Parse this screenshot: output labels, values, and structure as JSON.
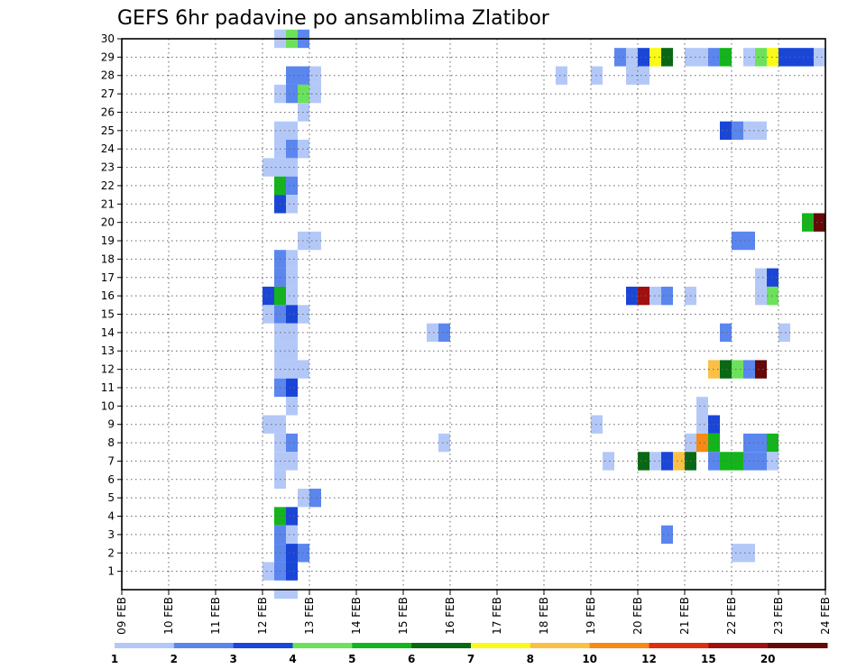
{
  "chart_data": {
    "type": "heatmap",
    "title": "GEFS 6hr padavine po ansamblima Zlatibor",
    "x_ticks": [
      "09 FEB",
      "10 FEB",
      "11 FEB",
      "12 FEB",
      "13 FEB",
      "14 FEB",
      "15 FEB",
      "16 FEB",
      "17 FEB",
      "18 FEB",
      "19 FEB",
      "20 FEB",
      "21 FEB",
      "22 FEB",
      "23 FEB",
      "24 FEB"
    ],
    "y_ticks": [
      "1",
      "2",
      "3",
      "4",
      "5",
      "6",
      "7",
      "8",
      "9",
      "10",
      "11",
      "12",
      "13",
      "14",
      "15",
      "16",
      "17",
      "18",
      "19",
      "20",
      "21",
      "22",
      "23",
      "24",
      "25",
      "26",
      "27",
      "28",
      "29",
      "30"
    ],
    "xlim_days": [
      9,
      24
    ],
    "ylim_members": [
      0,
      30
    ],
    "step_hours": 6,
    "grid": true,
    "legend": "colorbar-bottom",
    "colorbar": {
      "labels": [
        "1",
        "2",
        "3",
        "4",
        "5",
        "6",
        "7",
        "8",
        "10",
        "12",
        "15",
        "20"
      ],
      "colors": [
        "#b4c8f8",
        "#5a86ee",
        "#1a46d8",
        "#6ce25a",
        "#14b41c",
        "#0a6814",
        "#fafa18",
        "#fac046",
        "#f68a14",
        "#dc2e10",
        "#a01010",
        "#640808"
      ]
    },
    "cells": [
      {
        "member": 30,
        "day": 12.25,
        "value": 1.5
      },
      {
        "member": 30,
        "day": 12.5,
        "value": 4.5
      },
      {
        "member": 30,
        "day": 12.75,
        "value": 2.5
      },
      {
        "member": 29,
        "day": 19.5,
        "value": 2.5
      },
      {
        "member": 29,
        "day": 19.75,
        "value": 1.5
      },
      {
        "member": 29,
        "day": 20.0,
        "value": 3.5
      },
      {
        "member": 29,
        "day": 20.25,
        "value": 7.5
      },
      {
        "member": 29,
        "day": 20.5,
        "value": 6.5
      },
      {
        "member": 29,
        "day": 21.0,
        "value": 1.5
      },
      {
        "member": 29,
        "day": 21.25,
        "value": 1.5
      },
      {
        "member": 29,
        "day": 21.5,
        "value": 2.5
      },
      {
        "member": 29,
        "day": 21.75,
        "value": 5.5
      },
      {
        "member": 29,
        "day": 22.25,
        "value": 1.5
      },
      {
        "member": 29,
        "day": 22.5,
        "value": 4.5
      },
      {
        "member": 29,
        "day": 22.75,
        "value": 7.5
      },
      {
        "member": 29,
        "day": 23.0,
        "value": 3.5
      },
      {
        "member": 29,
        "day": 23.25,
        "value": 3.5
      },
      {
        "member": 29,
        "day": 23.5,
        "value": 3.5
      },
      {
        "member": 29,
        "day": 23.75,
        "value": 1.5
      },
      {
        "member": 28,
        "day": 12.5,
        "value": 2.5
      },
      {
        "member": 28,
        "day": 12.75,
        "value": 2.5
      },
      {
        "member": 28,
        "day": 13.0,
        "value": 1.5
      },
      {
        "member": 28,
        "day": 18.25,
        "value": 1.5
      },
      {
        "member": 28,
        "day": 19.0,
        "value": 1.5
      },
      {
        "member": 28,
        "day": 19.75,
        "value": 1.5
      },
      {
        "member": 28,
        "day": 20.0,
        "value": 1.5
      },
      {
        "member": 27,
        "day": 12.25,
        "value": 1.5
      },
      {
        "member": 27,
        "day": 12.5,
        "value": 2.5
      },
      {
        "member": 27,
        "day": 12.75,
        "value": 4.5
      },
      {
        "member": 27,
        "day": 13.0,
        "value": 1.5
      },
      {
        "member": 26,
        "day": 12.75,
        "value": 1.5
      },
      {
        "member": 25,
        "day": 12.25,
        "value": 1.5
      },
      {
        "member": 25,
        "day": 12.5,
        "value": 1.5
      },
      {
        "member": 25,
        "day": 21.75,
        "value": 3.5
      },
      {
        "member": 25,
        "day": 22.0,
        "value": 2.5
      },
      {
        "member": 25,
        "day": 22.25,
        "value": 1.5
      },
      {
        "member": 25,
        "day": 22.5,
        "value": 1.5
      },
      {
        "member": 24,
        "day": 12.25,
        "value": 1.5
      },
      {
        "member": 24,
        "day": 12.5,
        "value": 2.5
      },
      {
        "member": 24,
        "day": 12.75,
        "value": 1.5
      },
      {
        "member": 23,
        "day": 12.0,
        "value": 1.5
      },
      {
        "member": 23,
        "day": 12.25,
        "value": 1.5
      },
      {
        "member": 23,
        "day": 12.5,
        "value": 1.5
      },
      {
        "member": 22,
        "day": 12.25,
        "value": 5.5
      },
      {
        "member": 22,
        "day": 12.5,
        "value": 2.5
      },
      {
        "member": 21,
        "day": 12.25,
        "value": 3.5
      },
      {
        "member": 21,
        "day": 12.5,
        "value": 1.5
      },
      {
        "member": 20,
        "day": 23.5,
        "value": 5.5
      },
      {
        "member": 20,
        "day": 23.75,
        "value": 20.5
      },
      {
        "member": 19,
        "day": 12.75,
        "value": 1.5
      },
      {
        "member": 19,
        "day": 13.0,
        "value": 1.5
      },
      {
        "member": 19,
        "day": 22.0,
        "value": 2.5
      },
      {
        "member": 19,
        "day": 22.25,
        "value": 2.5
      },
      {
        "member": 18,
        "day": 12.25,
        "value": 2.5
      },
      {
        "member": 18,
        "day": 12.5,
        "value": 1.5
      },
      {
        "member": 17,
        "day": 12.25,
        "value": 2.5
      },
      {
        "member": 17,
        "day": 12.5,
        "value": 1.5
      },
      {
        "member": 17,
        "day": 22.5,
        "value": 1.5
      },
      {
        "member": 17,
        "day": 22.75,
        "value": 3.5
      },
      {
        "member": 16,
        "day": 12.0,
        "value": 3.5
      },
      {
        "member": 16,
        "day": 12.25,
        "value": 5.5
      },
      {
        "member": 16,
        "day": 12.5,
        "value": 1.5
      },
      {
        "member": 16,
        "day": 19.75,
        "value": 3.5
      },
      {
        "member": 16,
        "day": 20.0,
        "value": 16
      },
      {
        "member": 16,
        "day": 20.25,
        "value": 1.5
      },
      {
        "member": 16,
        "day": 20.5,
        "value": 2.5
      },
      {
        "member": 16,
        "day": 21.0,
        "value": 1.5
      },
      {
        "member": 16,
        "day": 22.5,
        "value": 1.5
      },
      {
        "member": 16,
        "day": 22.75,
        "value": 4.5
      },
      {
        "member": 15,
        "day": 12.0,
        "value": 1.5
      },
      {
        "member": 15,
        "day": 12.25,
        "value": 2.5
      },
      {
        "member": 15,
        "day": 12.5,
        "value": 3.5
      },
      {
        "member": 15,
        "day": 12.75,
        "value": 1.5
      },
      {
        "member": 14,
        "day": 12.25,
        "value": 1.5
      },
      {
        "member": 14,
        "day": 12.5,
        "value": 1.5
      },
      {
        "member": 14,
        "day": 15.5,
        "value": 1.5
      },
      {
        "member": 14,
        "day": 15.75,
        "value": 2.5
      },
      {
        "member": 14,
        "day": 21.75,
        "value": 2.5
      },
      {
        "member": 14,
        "day": 23.0,
        "value": 1.5
      },
      {
        "member": 13,
        "day": 12.25,
        "value": 1.5
      },
      {
        "member": 13,
        "day": 12.5,
        "value": 1.5
      },
      {
        "member": 12,
        "day": 12.25,
        "value": 1.5
      },
      {
        "member": 12,
        "day": 12.5,
        "value": 1.5
      },
      {
        "member": 12,
        "day": 12.75,
        "value": 1.5
      },
      {
        "member": 12,
        "day": 21.5,
        "value": 9
      },
      {
        "member": 12,
        "day": 21.75,
        "value": 6.5
      },
      {
        "member": 12,
        "day": 22.0,
        "value": 4.5
      },
      {
        "member": 12,
        "day": 22.25,
        "value": 2.5
      },
      {
        "member": 12,
        "day": 22.5,
        "value": 20.5
      },
      {
        "member": 11,
        "day": 12.25,
        "value": 2.5
      },
      {
        "member": 11,
        "day": 12.5,
        "value": 3.5
      },
      {
        "member": 10,
        "day": 12.5,
        "value": 1.5
      },
      {
        "member": 10,
        "day": 21.25,
        "value": 1.5
      },
      {
        "member": 9,
        "day": 12.0,
        "value": 1.5
      },
      {
        "member": 9,
        "day": 12.25,
        "value": 1.5
      },
      {
        "member": 9,
        "day": 19.0,
        "value": 1.5
      },
      {
        "member": 9,
        "day": 21.25,
        "value": 1.5
      },
      {
        "member": 9,
        "day": 21.5,
        "value": 3.5
      },
      {
        "member": 8,
        "day": 12.25,
        "value": 1.5
      },
      {
        "member": 8,
        "day": 12.5,
        "value": 2.5
      },
      {
        "member": 8,
        "day": 15.75,
        "value": 1.5
      },
      {
        "member": 8,
        "day": 21.0,
        "value": 1.5
      },
      {
        "member": 8,
        "day": 21.25,
        "value": 11
      },
      {
        "member": 8,
        "day": 21.5,
        "value": 5.5
      },
      {
        "member": 8,
        "day": 22.25,
        "value": 2.5
      },
      {
        "member": 8,
        "day": 22.5,
        "value": 2.5
      },
      {
        "member": 8,
        "day": 22.75,
        "value": 5.5
      },
      {
        "member": 7,
        "day": 12.25,
        "value": 1.5
      },
      {
        "member": 7,
        "day": 12.5,
        "value": 1.5
      },
      {
        "member": 7,
        "day": 19.25,
        "value": 1.5
      },
      {
        "member": 7,
        "day": 20.0,
        "value": 6.5
      },
      {
        "member": 7,
        "day": 20.25,
        "value": 1.5
      },
      {
        "member": 7,
        "day": 20.5,
        "value": 3.5
      },
      {
        "member": 7,
        "day": 20.75,
        "value": 9
      },
      {
        "member": 7,
        "day": 21.0,
        "value": 6.5
      },
      {
        "member": 7,
        "day": 21.5,
        "value": 2.5
      },
      {
        "member": 7,
        "day": 21.75,
        "value": 5.5
      },
      {
        "member": 7,
        "day": 22.0,
        "value": 5.5
      },
      {
        "member": 7,
        "day": 22.25,
        "value": 2.5
      },
      {
        "member": 7,
        "day": 22.5,
        "value": 2.5
      },
      {
        "member": 7,
        "day": 22.75,
        "value": 1.5
      },
      {
        "member": 6,
        "day": 12.25,
        "value": 1.5
      },
      {
        "member": 5,
        "day": 12.75,
        "value": 1.5
      },
      {
        "member": 5,
        "day": 13.0,
        "value": 2.5
      },
      {
        "member": 4,
        "day": 12.25,
        "value": 5.5
      },
      {
        "member": 4,
        "day": 12.5,
        "value": 3.5
      },
      {
        "member": 3,
        "day": 12.25,
        "value": 2.5
      },
      {
        "member": 3,
        "day": 12.5,
        "value": 1.5
      },
      {
        "member": 3,
        "day": 20.5,
        "value": 2.5
      },
      {
        "member": 2,
        "day": 12.25,
        "value": 2.5
      },
      {
        "member": 2,
        "day": 12.5,
        "value": 3.5
      },
      {
        "member": 2,
        "day": 12.75,
        "value": 2.5
      },
      {
        "member": 2,
        "day": 22.0,
        "value": 1.5
      },
      {
        "member": 2,
        "day": 22.25,
        "value": 1.5
      },
      {
        "member": 1,
        "day": 12.0,
        "value": 1.5
      },
      {
        "member": 1,
        "day": 12.25,
        "value": 2.5
      },
      {
        "member": 1,
        "day": 12.5,
        "value": 3.5
      },
      {
        "member": 0,
        "day": 12.25,
        "value": 1.5
      },
      {
        "member": 0,
        "day": 12.5,
        "value": 1.5
      }
    ]
  }
}
